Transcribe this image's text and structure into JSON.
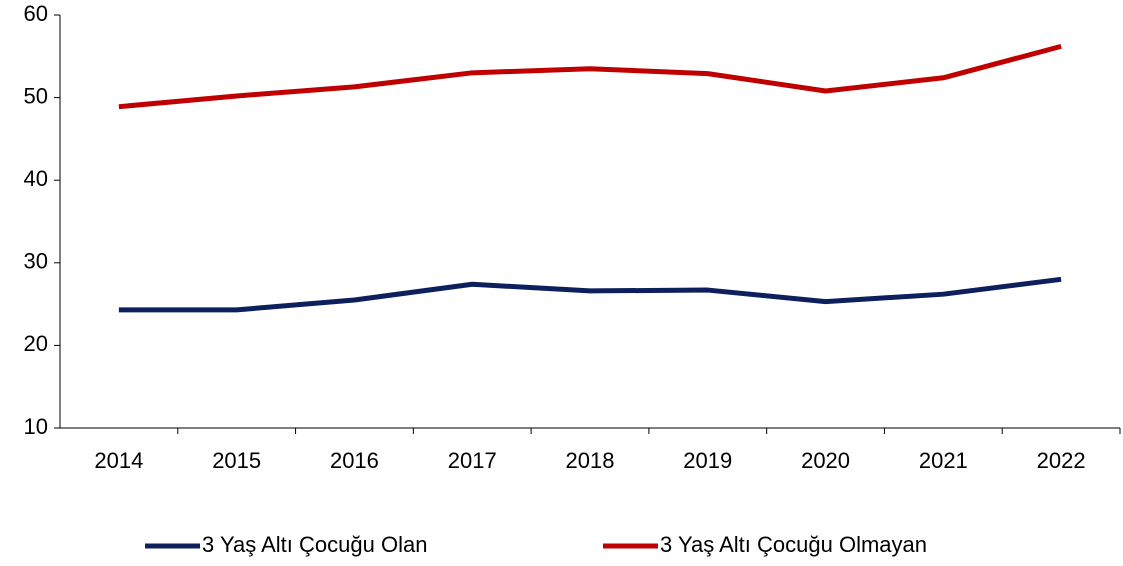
{
  "chart_data": {
    "type": "line",
    "categories": [
      "2014",
      "2015",
      "2016",
      "2017",
      "2018",
      "2019",
      "2020",
      "2021",
      "2022"
    ],
    "series": [
      {
        "name": "3 Yaş Altı Çocuğu Olan",
        "color": "#0d1f5c",
        "values": [
          24.3,
          24.3,
          25.5,
          27.4,
          26.6,
          26.7,
          25.3,
          26.2,
          28.0
        ]
      },
      {
        "name": "3 Yaş Altı Çocuğu Olmayan",
        "color": "#c00000",
        "values": [
          48.9,
          50.2,
          51.3,
          53.0,
          53.5,
          52.9,
          50.8,
          52.4,
          56.2
        ]
      }
    ],
    "ylim": [
      10,
      60
    ],
    "yticks": [
      10,
      20,
      30,
      40,
      50,
      60
    ],
    "grid": false,
    "legend": "bottom"
  }
}
